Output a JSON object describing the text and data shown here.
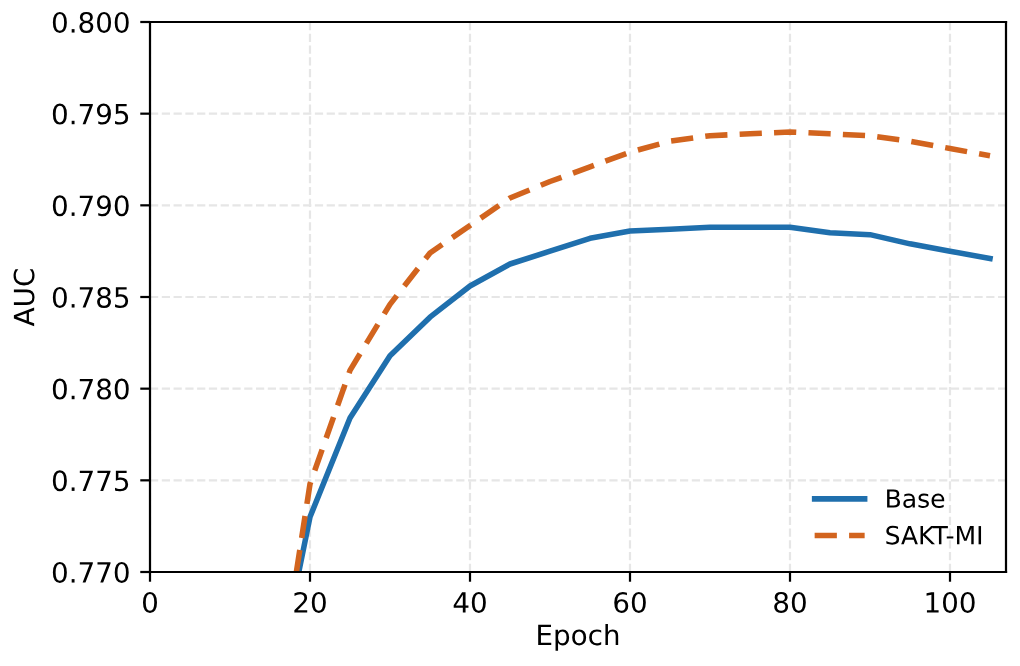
{
  "chart_data": {
    "type": "line",
    "xlabel": "Epoch",
    "ylabel": "AUC",
    "xlim": [
      0,
      107
    ],
    "ylim": [
      0.77,
      0.8
    ],
    "xticks": [
      0,
      20,
      40,
      60,
      80,
      100
    ],
    "yticks": [
      {
        "value": 0.77,
        "label": "0.770"
      },
      {
        "value": 0.775,
        "label": "0.775"
      },
      {
        "value": 0.78,
        "label": "0.780"
      },
      {
        "value": 0.785,
        "label": "0.785"
      },
      {
        "value": 0.79,
        "label": "0.790"
      },
      {
        "value": 0.795,
        "label": "0.795"
      },
      {
        "value": 0.8,
        "label": "0.800"
      }
    ],
    "grid": true,
    "legend": "bottom right",
    "marker": "none",
    "series": [
      {
        "name": "Base",
        "color": "#1f6fad",
        "line_style": "solid",
        "x": [
          18.6,
          20,
          25,
          30,
          35,
          40,
          45,
          50,
          55,
          60,
          65,
          70,
          75,
          80,
          85,
          90,
          95,
          100,
          105
        ],
        "values": [
          0.77,
          0.773,
          0.7784,
          0.7818,
          0.7839,
          0.7856,
          0.7868,
          0.7875,
          0.7882,
          0.7886,
          0.7887,
          0.7888,
          0.7888,
          0.7888,
          0.7885,
          0.7884,
          0.7879,
          0.7875,
          0.7871
        ]
      },
      {
        "name": "SAKT-MI",
        "color": "#d2641e",
        "line_style": "dashed",
        "x": [
          18.3,
          20,
          25,
          30,
          35,
          40,
          45,
          50,
          55,
          60,
          65,
          70,
          75,
          80,
          85,
          90,
          95,
          100,
          105
        ],
        "values": [
          0.77,
          0.7748,
          0.781,
          0.7846,
          0.7874,
          0.7889,
          0.7904,
          0.7913,
          0.7921,
          0.7929,
          0.7935,
          0.7938,
          0.7939,
          0.794,
          0.7939,
          0.7938,
          0.7935,
          0.7931,
          0.7927
        ]
      }
    ]
  }
}
